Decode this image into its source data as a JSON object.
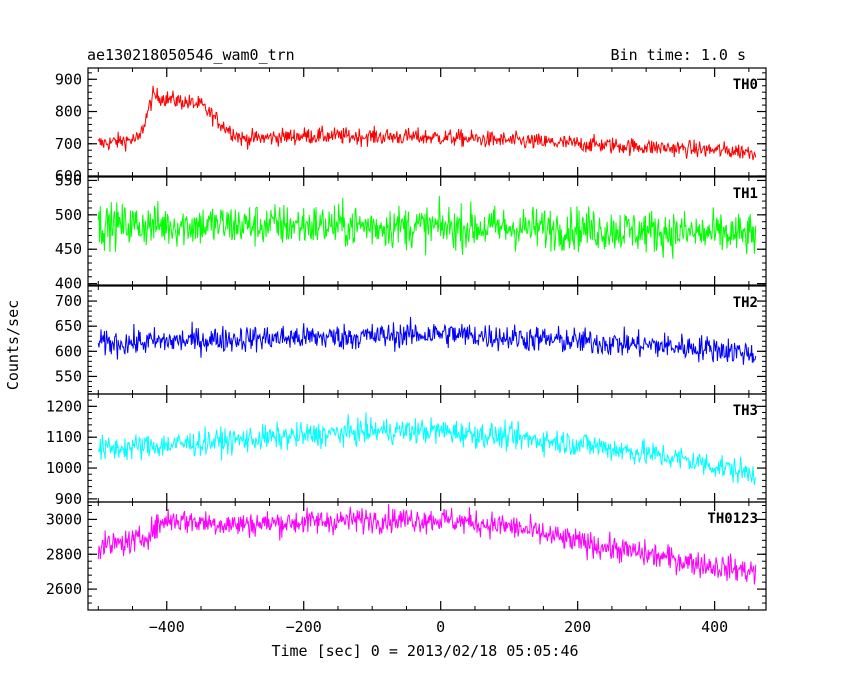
{
  "chart_data": {
    "type": "line",
    "title": "ae130218050546_wam0_trn",
    "bin_time_label": "Bin time: 1.0 s",
    "xlabel": "Time [sec] 0 = 2013/02/18 05:05:46",
    "ylabel": "Counts/sec",
    "xlim": [
      -515,
      475
    ],
    "x_ticks": [
      -400,
      -200,
      0,
      200,
      400
    ],
    "x_tick_labels": [
      "−400",
      "−200",
      "0",
      "200",
      "400"
    ],
    "x_data_range": [
      -500,
      460
    ],
    "panels": [
      {
        "name": "TH0",
        "color": "#ff0000",
        "ylim": [
          600,
          935
        ],
        "y_ticks": [
          600,
          700,
          800,
          900
        ],
        "y_tick_labels": [
          "600",
          "700",
          "800",
          "900"
        ],
        "trend": [
          [
            -500,
            700
          ],
          [
            -440,
            715
          ],
          [
            -420,
            850
          ],
          [
            -400,
            840
          ],
          [
            -350,
            820
          ],
          [
            -320,
            760
          ],
          [
            -290,
            715
          ],
          [
            -200,
            725
          ],
          [
            0,
            720
          ],
          [
            200,
            700
          ],
          [
            400,
            680
          ],
          [
            460,
            675
          ]
        ],
        "noise": 25
      },
      {
        "name": "TH1",
        "color": "#00ff00",
        "ylim": [
          398,
          555
        ],
        "y_ticks": [
          400,
          450,
          500,
          550
        ],
        "y_tick_labels": [
          "400",
          "450",
          "500",
          "550"
        ],
        "trend": [
          [
            -500,
            485
          ],
          [
            -200,
            485
          ],
          [
            0,
            482
          ],
          [
            200,
            480
          ],
          [
            460,
            470
          ]
        ],
        "noise": 30
      },
      {
        "name": "TH2",
        "color": "#0000ff",
        "ylim": [
          515,
          730
        ],
        "y_ticks": [
          550,
          600,
          650,
          700
        ],
        "y_tick_labels": [
          "550",
          "600",
          "650",
          "700"
        ],
        "trend": [
          [
            -500,
            615
          ],
          [
            -300,
            625
          ],
          [
            -100,
            630
          ],
          [
            0,
            635
          ],
          [
            200,
            620
          ],
          [
            400,
            605
          ],
          [
            460,
            595
          ]
        ],
        "noise": 25
      },
      {
        "name": "TH3",
        "color": "#00ffff",
        "ylim": [
          890,
          1240
        ],
        "y_ticks": [
          900,
          1000,
          1100,
          1200
        ],
        "y_tick_labels": [
          "900",
          "1000",
          "1100",
          "1200"
        ],
        "trend": [
          [
            -500,
            1060
          ],
          [
            -300,
            1090
          ],
          [
            -100,
            1120
          ],
          [
            0,
            1120
          ],
          [
            200,
            1080
          ],
          [
            350,
            1030
          ],
          [
            460,
            980
          ]
        ],
        "noise": 40
      },
      {
        "name": "TH0123",
        "color": "#ff00ff",
        "ylim": [
          2480,
          3100
        ],
        "y_ticks": [
          2600,
          2800,
          3000
        ],
        "y_tick_labels": [
          "2600",
          "2800",
          "3000"
        ],
        "trend": [
          [
            -500,
            2840
          ],
          [
            -440,
            2880
          ],
          [
            -400,
            3000
          ],
          [
            -300,
            2970
          ],
          [
            -100,
            3000
          ],
          [
            0,
            3000
          ],
          [
            100,
            2960
          ],
          [
            200,
            2870
          ],
          [
            300,
            2800
          ],
          [
            400,
            2730
          ],
          [
            460,
            2700
          ]
        ],
        "noise": 70
      }
    ]
  }
}
